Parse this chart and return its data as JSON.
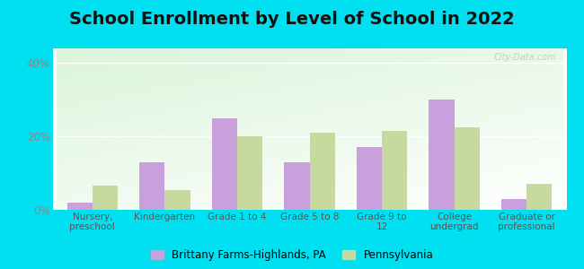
{
  "title": "School Enrollment by Level of School in 2022",
  "categories": [
    "Nursery,\npreschool",
    "Kindergarten",
    "Grade 1 to 4",
    "Grade 5 to 8",
    "Grade 9 to\n12",
    "College\nundergrad",
    "Graduate or\nprofessional"
  ],
  "brittany_values": [
    2.0,
    13.0,
    25.0,
    13.0,
    17.0,
    30.0,
    3.0
  ],
  "pennsylvania_values": [
    6.5,
    5.5,
    20.0,
    21.0,
    21.5,
    22.5,
    7.0
  ],
  "brittany_color": "#c9a0dc",
  "pennsylvania_color": "#c8d9a0",
  "background_outer": "#00e0f0",
  "plot_bg_colors": [
    "#d8efd0",
    "#f5fbf2",
    "#ffffff"
  ],
  "ylim": [
    0,
    44
  ],
  "yticks": [
    0,
    20,
    40
  ],
  "ytick_labels": [
    "0%",
    "20%",
    "40%"
  ],
  "legend_brittany": "Brittany Farms-Highlands, PA",
  "legend_pennsylvania": "Pennsylvania",
  "bar_width": 0.35,
  "title_fontsize": 14,
  "watermark": "City-Data.com"
}
